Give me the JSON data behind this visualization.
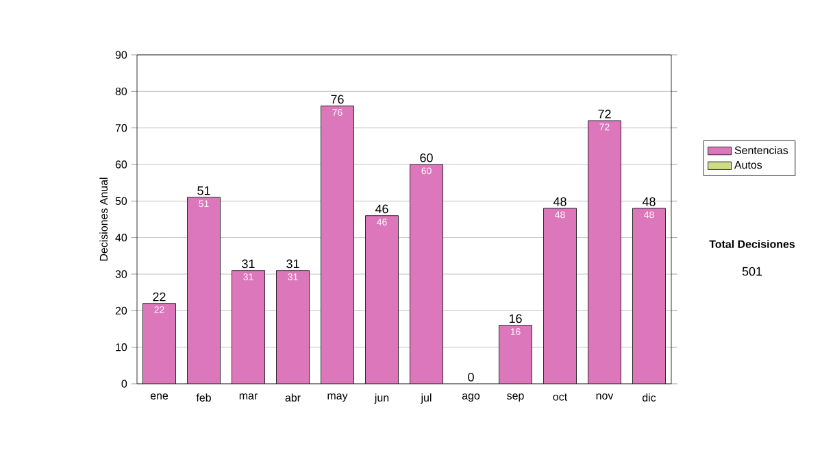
{
  "chart_data": {
    "type": "bar",
    "stacked": true,
    "ylabel": "Decisiones Anual",
    "categories": [
      "ene",
      "feb",
      "mar",
      "abr",
      "may",
      "jun",
      "jul",
      "ago",
      "sep",
      "oct",
      "nov",
      "dic"
    ],
    "series": [
      {
        "name": "Sentencias",
        "color": "#dd77bb",
        "values": [
          22,
          51,
          31,
          31,
          76,
          46,
          60,
          0,
          16,
          48,
          72,
          48
        ],
        "value_labels": [
          "22",
          "51",
          "31",
          "31",
          "76",
          "46",
          "60",
          null,
          "16",
          "48",
          "72",
          "48"
        ]
      },
      {
        "name": "Autos",
        "color": "#ccdd88",
        "values": [
          0,
          0,
          0,
          0,
          0,
          0,
          0,
          0,
          0,
          0,
          0,
          0
        ]
      }
    ],
    "totals": [
      "22",
      "51",
      "31",
      "31",
      "76",
      "46",
      "60",
      "0",
      "16",
      "48",
      "72",
      "48"
    ],
    "ylim": [
      0,
      90
    ],
    "yticks": [
      0,
      10,
      20,
      30,
      40,
      50,
      60,
      70,
      80,
      90
    ],
    "grid": "y",
    "legend": "right",
    "annotations": [
      "Total Decisiones",
      "501"
    ]
  }
}
